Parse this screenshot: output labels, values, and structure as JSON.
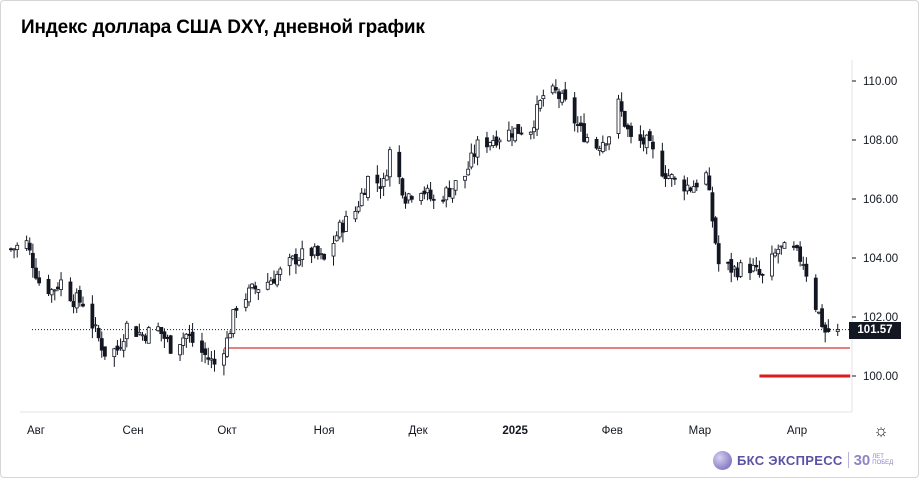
{
  "title": "Индекс доллара США DXY, дневной график",
  "last_price_label": "101.57",
  "colors": {
    "up": "#131722",
    "down": "#131722",
    "support_line": "#cc0000",
    "support_thick": "#e0191e",
    "logo": "#5b52a3"
  },
  "icons": {
    "settings": "gear-icon",
    "logo": "bks-logo-icon"
  },
  "logo": {
    "brand": "БКС ЭКСПРЕСС",
    "years": "30",
    "years_sub_1": "ЛЕТ",
    "years_sub_2": "ПОБЕД"
  },
  "chart_data": {
    "type": "candlestick",
    "title": "Индекс доллара США DXY, дневной график",
    "xlabel": "",
    "ylabel": "",
    "ylim": [
      99.1,
      111.0
    ],
    "y_ticks": [
      "100.00",
      "102.00",
      "104.00",
      "106.00",
      "108.00",
      "110.00"
    ],
    "x_ticks": [
      {
        "label": "Авг",
        "date": "2024-08-01",
        "bold": false
      },
      {
        "label": "Сен",
        "date": "2024-09-01",
        "bold": false
      },
      {
        "label": "Окт",
        "date": "2024-10-01",
        "bold": false
      },
      {
        "label": "Ноя",
        "date": "2024-11-01",
        "bold": false
      },
      {
        "label": "Дек",
        "date": "2024-12-01",
        "bold": false
      },
      {
        "label": "2025",
        "date": "2025-01-01",
        "bold": true
      },
      {
        "label": "Фев",
        "date": "2025-02-01",
        "bold": false
      },
      {
        "label": "Мар",
        "date": "2025-03-01",
        "bold": false
      },
      {
        "label": "Апр",
        "date": "2025-04-01",
        "bold": false
      }
    ],
    "last_price": 101.57,
    "support_level": 100.95,
    "support_level_2": 100.0,
    "support_level_2_range": [
      "2025-03-20",
      "2025-04-18"
    ],
    "close_path": [
      [
        "2024-07-24",
        104.3
      ],
      [
        "2024-07-29",
        104.5
      ],
      [
        "2024-08-02",
        103.2
      ],
      [
        "2024-08-06",
        102.9
      ],
      [
        "2024-08-09",
        103.2
      ],
      [
        "2024-08-13",
        102.6
      ],
      [
        "2024-08-16",
        102.5
      ],
      [
        "2024-08-20",
        101.5
      ],
      [
        "2024-08-23",
        100.8
      ],
      [
        "2024-08-27",
        100.9
      ],
      [
        "2024-08-30",
        101.7
      ],
      [
        "2024-09-04",
        101.4
      ],
      [
        "2024-09-09",
        101.6
      ],
      [
        "2024-09-13",
        101.0
      ],
      [
        "2024-09-18",
        101.4
      ],
      [
        "2024-09-23",
        100.8
      ],
      [
        "2024-09-27",
        100.4
      ],
      [
        "2024-10-01",
        101.2
      ],
      [
        "2024-10-04",
        102.4
      ],
      [
        "2024-10-09",
        102.9
      ],
      [
        "2024-10-14",
        103.2
      ],
      [
        "2024-10-18",
        103.5
      ],
      [
        "2024-10-23",
        104.0
      ],
      [
        "2024-10-28",
        104.2
      ],
      [
        "2024-11-01",
        103.9
      ],
      [
        "2024-11-06",
        105.0
      ],
      [
        "2024-11-11",
        105.6
      ],
      [
        "2024-11-15",
        106.7
      ],
      [
        "2024-11-20",
        106.5
      ],
      [
        "2024-11-22",
        107.6
      ],
      [
        "2024-11-27",
        106.1
      ],
      [
        "2024-12-02",
        106.4
      ],
      [
        "2024-12-06",
        105.9
      ],
      [
        "2024-12-11",
        106.3
      ],
      [
        "2024-12-16",
        106.8
      ],
      [
        "2024-12-20",
        107.8
      ],
      [
        "2024-12-26",
        108.1
      ],
      [
        "2024-12-31",
        108.3
      ],
      [
        "2025-01-06",
        108.4
      ],
      [
        "2025-01-10",
        109.5
      ],
      [
        "2025-01-14",
        109.6
      ],
      [
        "2025-01-17",
        109.2
      ],
      [
        "2025-01-22",
        108.3
      ],
      [
        "2025-01-27",
        107.8
      ],
      [
        "2025-01-31",
        108.2
      ],
      [
        "2025-02-03",
        109.2
      ],
      [
        "2025-02-07",
        108.0
      ],
      [
        "2025-02-12",
        107.9
      ],
      [
        "2025-02-17",
        107.0
      ],
      [
        "2025-02-21",
        106.6
      ],
      [
        "2025-02-26",
        106.4
      ],
      [
        "2025-03-03",
        106.8
      ],
      [
        "2025-03-07",
        103.8
      ],
      [
        "2025-03-12",
        103.6
      ],
      [
        "2025-03-17",
        103.7
      ],
      [
        "2025-03-21",
        103.3
      ],
      [
        "2025-03-26",
        104.3
      ],
      [
        "2025-03-31",
        104.2
      ],
      [
        "2025-04-03",
        103.9
      ],
      [
        "2025-04-07",
        102.4
      ],
      [
        "2025-04-10",
        101.5
      ],
      [
        "2025-04-14",
        101.57
      ]
    ]
  }
}
